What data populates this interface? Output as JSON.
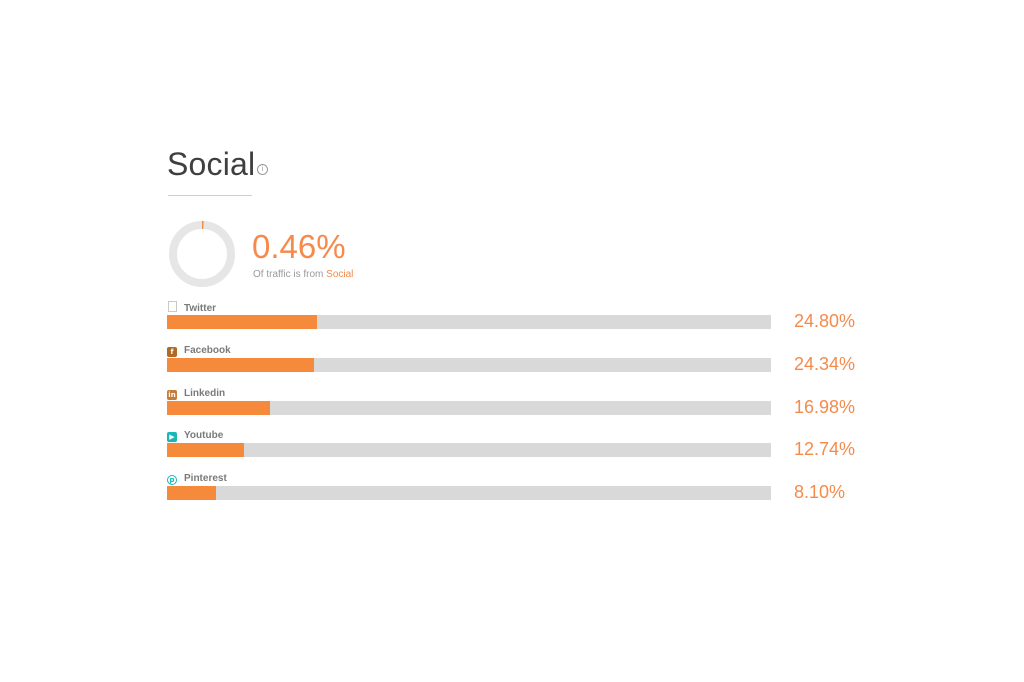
{
  "header": {
    "title": "Social",
    "info_icon": "info-icon"
  },
  "summary": {
    "value": "0.46%",
    "value_fraction": 0.0046,
    "caption_prefix": "Of traffic is from ",
    "caption_highlight": "Social"
  },
  "colors": {
    "accent": "#f58a3d",
    "accent_text": "#f58a4b",
    "track": "#d9d9d9",
    "donut_track": "#e6e6e6",
    "title": "#3f3f3f",
    "muted": "#9a9a9a"
  },
  "chart_data": {
    "type": "bar",
    "orientation": "horizontal",
    "title": "Social",
    "categories": [
      "Twitter",
      "Facebook",
      "Linkedin",
      "Youtube",
      "Pinterest"
    ],
    "values": [
      24.8,
      24.34,
      16.98,
      12.74,
      8.1
    ],
    "value_labels": [
      "24.80%",
      "24.34%",
      "16.98%",
      "12.74%",
      "8.10%"
    ],
    "xlim": [
      0,
      100
    ],
    "icons": [
      "document-icon",
      "facebook-icon",
      "linkedin-icon",
      "youtube-icon",
      "pinterest-icon"
    ],
    "grid": false,
    "legend": "none"
  }
}
